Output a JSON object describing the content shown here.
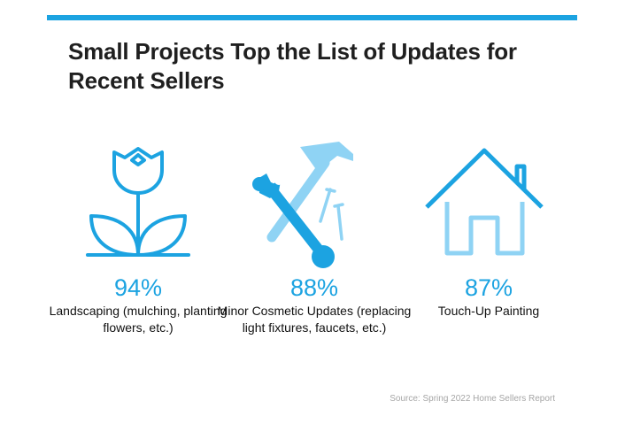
{
  "title": "Small Projects Top the List of Updates for Recent Sellers",
  "colors": {
    "accent": "#1ca3e1",
    "accent_light": "#8fd3f4",
    "text": "#1f1f1f",
    "muted": "#a6a6a6"
  },
  "stats": [
    {
      "icon": "tulip-icon",
      "percent": "94%",
      "label": "Landscaping (mulching, planting flowers, etc.)"
    },
    {
      "icon": "hammer-wrench-nails-icon",
      "percent": "88%",
      "label": "Minor Cosmetic Updates (replacing light fixtures, faucets, etc.)"
    },
    {
      "icon": "house-icon",
      "percent": "87%",
      "label": "Touch-Up Painting"
    }
  ],
  "source": "Source: Spring 2022 Home Sellers Report"
}
